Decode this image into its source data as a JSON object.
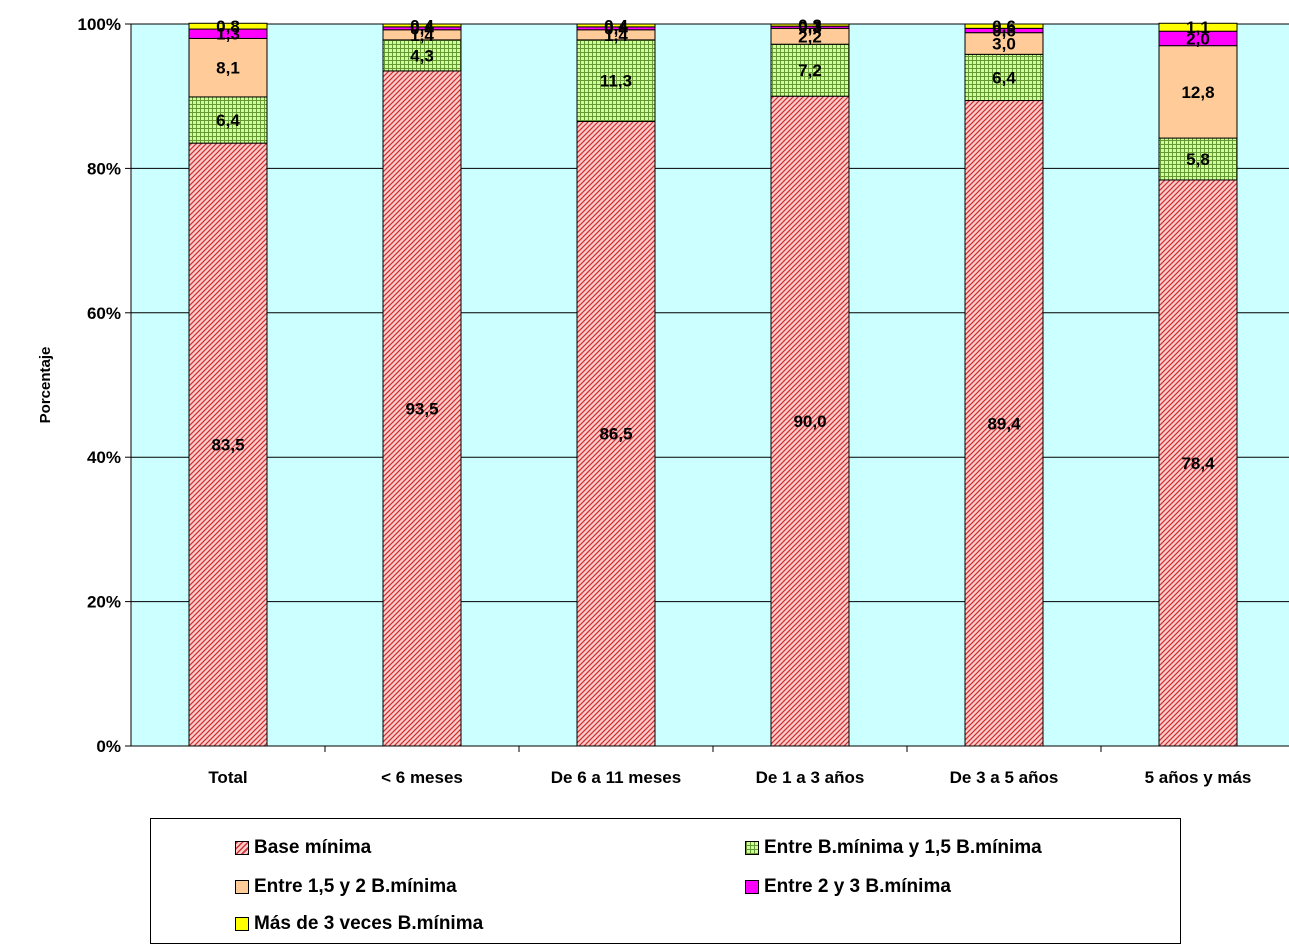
{
  "chart_data": {
    "type": "bar",
    "stacked": true,
    "normalized": true,
    "ylabel": "Porcentaje",
    "xlabel": "",
    "ylim": [
      0,
      100
    ],
    "y_ticks": [
      "0%",
      "20%",
      "40%",
      "60%",
      "80%",
      "100%"
    ],
    "grid": true,
    "legend_position": "bottom",
    "plot_background": "#ccffff",
    "categories": [
      "Total",
      "< 6 meses",
      "De 6 a 11 meses",
      "De 1 a 3 años",
      "De 3 a 5 años",
      "5 años y más"
    ],
    "series": [
      {
        "name": "Base mínima",
        "values": [
          83.5,
          93.5,
          86.5,
          90.0,
          89.4,
          78.4
        ],
        "labels": [
          "83,5",
          "93,5",
          "86,5",
          "90,0",
          "89,4",
          "78,4"
        ],
        "color": "#ff9999",
        "pattern": "diagonal"
      },
      {
        "name": "Entre B.mínima y 1,5 B.mínima",
        "values": [
          6.4,
          4.3,
          11.3,
          7.2,
          6.4,
          5.8
        ],
        "labels": [
          "6,4",
          "4,3",
          "11,3",
          "7,2",
          "6,4",
          "5,8"
        ],
        "color": "#ccff99",
        "pattern": "grid"
      },
      {
        "name": "Entre 1,5 y 2 B.mínima",
        "values": [
          8.1,
          1.4,
          1.4,
          2.2,
          3.0,
          12.8
        ],
        "labels": [
          "8,1",
          "1,4",
          "1,4",
          "2,2",
          "3,0",
          "12,8"
        ],
        "color": "#ffcc99",
        "pattern": "solid"
      },
      {
        "name": "Entre 2 y 3 B.mínima",
        "values": [
          1.3,
          0.4,
          0.4,
          0.3,
          0.6,
          2.0
        ],
        "labels": [
          "1,3",
          "0,4",
          "0,4",
          "0,3",
          "0,6",
          "2,0"
        ],
        "color": "#ff00ff",
        "pattern": "solid"
      },
      {
        "name": "Más de 3 veces B.mínima",
        "values": [
          0.8,
          0.4,
          0.4,
          0.3,
          0.6,
          1.1
        ],
        "labels": [
          "0,8",
          "0,4",
          "0,4",
          "0,3",
          "0,6",
          "1,1"
        ],
        "color": "#ffff00",
        "pattern": "solid"
      }
    ]
  }
}
